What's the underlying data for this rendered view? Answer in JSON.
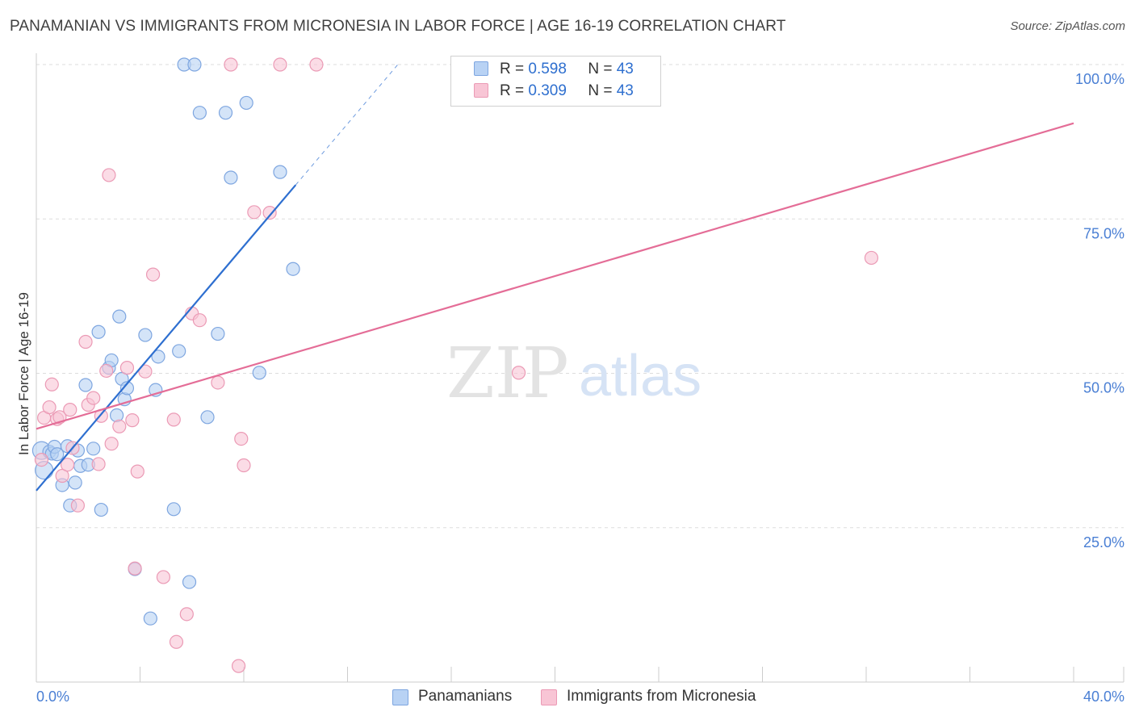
{
  "title": "PANAMANIAN VS IMMIGRANTS FROM MICRONESIA IN LABOR FORCE | AGE 16-19 CORRELATION CHART",
  "source": "Source: ZipAtlas.com",
  "legend_stats": [
    {
      "r_label": "R =",
      "r_value": "0.598",
      "n_label": "N =",
      "n_value": "43"
    },
    {
      "r_label": "R =",
      "r_value": "0.309",
      "n_label": "N =",
      "n_value": "43"
    }
  ],
  "colors": {
    "blue_fill": "#b8d2f4",
    "blue_stroke": "#7ea6e0",
    "blue_line": "#2e6fd0",
    "pink_fill": "#f8c5d5",
    "pink_stroke": "#eb9ab5",
    "pink_line": "#e46d97",
    "grid": "#dddddd",
    "tick_text": "#4a7fd4"
  },
  "chart_data": {
    "type": "scatter",
    "title": "PANAMANIAN VS IMMIGRANTS FROM MICRONESIA IN LABOR FORCE | AGE 16-19 CORRELATION CHART",
    "xlabel": "",
    "ylabel": "In Labor Force | Age 16-19",
    "xlim": [
      0,
      40
    ],
    "ylim": [
      0,
      100
    ],
    "x_tick_labels": [
      "0.0%",
      "40.0%"
    ],
    "y_ticks": [
      25,
      50,
      75,
      100
    ],
    "y_tick_labels": [
      "25.0%",
      "50.0%",
      "75.0%",
      "100.0%"
    ],
    "watermark": [
      "ZIP",
      "atlas"
    ],
    "series": [
      {
        "name": "Panamanians",
        "r": 0.598,
        "n": 43,
        "trend": {
          "x0": 0,
          "y0": 31.0,
          "x1": 10.0,
          "y1": 80.5,
          "dashed_to_x": 14.0
        },
        "points": [
          [
            0.2,
            37.5
          ],
          [
            0.3,
            34.3
          ],
          [
            0.5,
            37.3
          ],
          [
            0.6,
            37.0
          ],
          [
            0.7,
            38.1
          ],
          [
            0.8,
            36.9
          ],
          [
            1.0,
            31.9
          ],
          [
            1.2,
            38.2
          ],
          [
            1.3,
            28.6
          ],
          [
            1.5,
            32.3
          ],
          [
            1.6,
            37.5
          ],
          [
            1.7,
            35.0
          ],
          [
            1.9,
            48.1
          ],
          [
            2.0,
            35.2
          ],
          [
            2.2,
            37.8
          ],
          [
            2.4,
            56.7
          ],
          [
            2.5,
            27.9
          ],
          [
            2.8,
            50.9
          ],
          [
            2.9,
            52.1
          ],
          [
            3.1,
            43.2
          ],
          [
            3.2,
            59.2
          ],
          [
            3.3,
            49.1
          ],
          [
            3.4,
            45.8
          ],
          [
            3.5,
            47.6
          ],
          [
            3.8,
            18.3
          ],
          [
            4.2,
            56.2
          ],
          [
            4.4,
            10.3
          ],
          [
            4.6,
            47.3
          ],
          [
            4.7,
            52.7
          ],
          [
            5.3,
            28.0
          ],
          [
            5.5,
            53.6
          ],
          [
            5.7,
            100.0
          ],
          [
            5.9,
            16.2
          ],
          [
            6.1,
            100.0
          ],
          [
            6.3,
            92.2
          ],
          [
            6.6,
            42.9
          ],
          [
            7.0,
            56.4
          ],
          [
            7.3,
            92.2
          ],
          [
            7.5,
            81.7
          ],
          [
            8.1,
            93.8
          ],
          [
            8.6,
            50.1
          ],
          [
            9.4,
            82.6
          ],
          [
            9.9,
            66.9
          ]
        ]
      },
      {
        "name": "Immigrants from Micronesia",
        "r": 0.309,
        "n": 43,
        "trend": {
          "x0": 0,
          "y0": 41.0,
          "x1": 40.0,
          "y1": 90.5
        },
        "points": [
          [
            0.2,
            36.0
          ],
          [
            0.3,
            42.8
          ],
          [
            0.5,
            44.5
          ],
          [
            0.6,
            48.2
          ],
          [
            0.8,
            42.6
          ],
          [
            0.9,
            42.9
          ],
          [
            1.0,
            33.4
          ],
          [
            1.2,
            35.2
          ],
          [
            1.3,
            44.1
          ],
          [
            1.4,
            37.9
          ],
          [
            1.6,
            28.6
          ],
          [
            1.9,
            55.1
          ],
          [
            2.0,
            44.9
          ],
          [
            2.2,
            46.0
          ],
          [
            2.4,
            35.3
          ],
          [
            2.5,
            43.1
          ],
          [
            2.7,
            50.4
          ],
          [
            2.8,
            82.1
          ],
          [
            2.9,
            38.6
          ],
          [
            3.2,
            41.4
          ],
          [
            3.5,
            50.9
          ],
          [
            3.7,
            42.4
          ],
          [
            3.8,
            18.4
          ],
          [
            3.9,
            34.1
          ],
          [
            4.2,
            50.3
          ],
          [
            4.5,
            66.0
          ],
          [
            4.9,
            17.0
          ],
          [
            5.3,
            42.5
          ],
          [
            5.4,
            6.5
          ],
          [
            5.8,
            11.0
          ],
          [
            6.0,
            59.7
          ],
          [
            6.3,
            58.6
          ],
          [
            7.0,
            48.5
          ],
          [
            7.5,
            100.0
          ],
          [
            7.8,
            2.6
          ],
          [
            7.9,
            39.4
          ],
          [
            8.0,
            35.1
          ],
          [
            8.4,
            76.1
          ],
          [
            9.0,
            76.0
          ],
          [
            9.4,
            100.0
          ],
          [
            10.8,
            100.0
          ],
          [
            18.6,
            50.1
          ],
          [
            32.2,
            68.7
          ]
        ]
      }
    ]
  },
  "bottom_legend": [
    "Panamanians",
    "Immigrants from Micronesia"
  ]
}
